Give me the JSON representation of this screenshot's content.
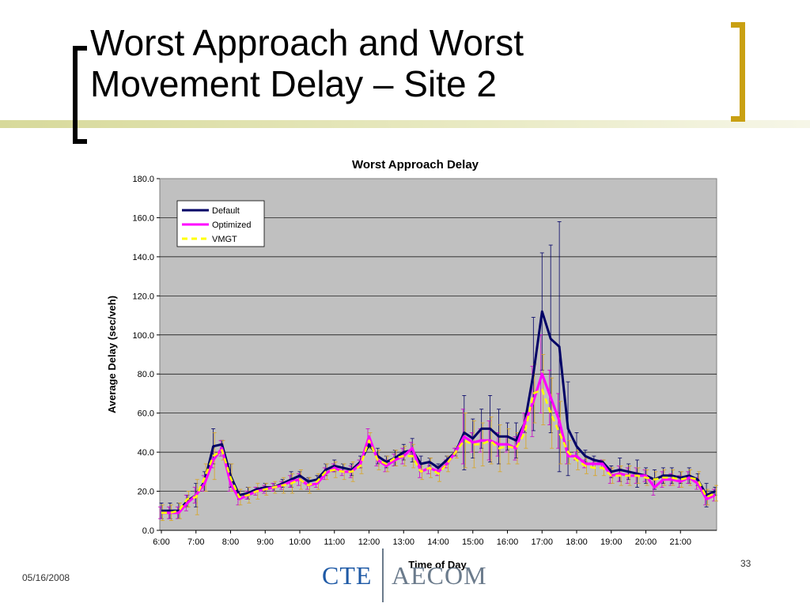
{
  "slide": {
    "title": "Worst Approach and Worst Movement Delay – Site 2",
    "date": "05/16/2008",
    "page_number": "33",
    "logo": {
      "left": "CTE",
      "right": "AECOM"
    }
  },
  "colors": {
    "bracket_left": "#000000",
    "bracket_right": "#c9a012",
    "accent_bar": "#d7d99a"
  },
  "chart_data": {
    "type": "line",
    "title": "Worst Approach Delay",
    "xlabel": "Time of Day",
    "ylabel": "Average Delay (sec/veh)",
    "ylim": [
      0,
      180
    ],
    "yticks": [
      "0.0",
      "20.0",
      "40.0",
      "60.0",
      "80.0",
      "100.0",
      "120.0",
      "140.0",
      "160.0",
      "180.0"
    ],
    "xticks": [
      "6:00",
      "7:00",
      "8:00",
      "9:00",
      "10:00",
      "11:00",
      "12:00",
      "13:00",
      "14:00",
      "15:00",
      "16:00",
      "17:00",
      "18:00",
      "19:00",
      "20:00",
      "21:00"
    ],
    "x_start": "6:00",
    "x_step_minutes": 15,
    "grid": true,
    "legend": "top-left",
    "series": [
      {
        "name": "Default",
        "color": "#000066",
        "style": "solid",
        "values": [
          10,
          10,
          10,
          15,
          18,
          25,
          43,
          44,
          28,
          18,
          19,
          21,
          22,
          22,
          24,
          26,
          28,
          25,
          26,
          31,
          33,
          32,
          31,
          35,
          44,
          38,
          35,
          37,
          40,
          41,
          34,
          35,
          32,
          36,
          40,
          50,
          47,
          52,
          52,
          48,
          48,
          46,
          55,
          80,
          112,
          98,
          94,
          52,
          43,
          38,
          36,
          35,
          30,
          31,
          30,
          29,
          28,
          26,
          28,
          28,
          27,
          28,
          26,
          18,
          20
        ],
        "err_hi": [
          14,
          14,
          14,
          18,
          24,
          30,
          52,
          46,
          34,
          20,
          22,
          22,
          24,
          24,
          26,
          30,
          30,
          27,
          28,
          34,
          36,
          34,
          34,
          38,
          46,
          42,
          38,
          41,
          44,
          47,
          38,
          37,
          34,
          38,
          42,
          69,
          57,
          62,
          69,
          62,
          55,
          55,
          60,
          109,
          142,
          146,
          158,
          76,
          50,
          41,
          38,
          36,
          33,
          37,
          34,
          36,
          32,
          31,
          32,
          32,
          30,
          32,
          29,
          24,
          22
        ]
      },
      {
        "name": "Optimized",
        "color": "#ff00ff",
        "style": "solid",
        "values": [
          9,
          9,
          9,
          14,
          18,
          24,
          36,
          42,
          24,
          16,
          18,
          20,
          21,
          22,
          23,
          25,
          26,
          23,
          24,
          29,
          32,
          30,
          30,
          34,
          48,
          36,
          33,
          36,
          38,
          42,
          30,
          32,
          30,
          34,
          40,
          48,
          45,
          46,
          46,
          44,
          44,
          42,
          55,
          66,
          80,
          68,
          56,
          38,
          38,
          34,
          34,
          34,
          28,
          29,
          28,
          28,
          28,
          22,
          26,
          26,
          25,
          27,
          24,
          16,
          18
        ],
        "err_hi": [
          12,
          12,
          12,
          18,
          22,
          28,
          40,
          46,
          28,
          19,
          20,
          22,
          23,
          24,
          25,
          28,
          29,
          25,
          26,
          32,
          34,
          32,
          33,
          36,
          52,
          39,
          36,
          39,
          42,
          45,
          33,
          35,
          32,
          36,
          42,
          62,
          50,
          52,
          56,
          50,
          48,
          48,
          60,
          84,
          100,
          82,
          70,
          42,
          40,
          36,
          36,
          36,
          32,
          33,
          32,
          32,
          31,
          26,
          30,
          29,
          28,
          30,
          27,
          19,
          21
        ]
      },
      {
        "name": "VMGT",
        "color": "#ffff00",
        "style": "dashed",
        "values": [
          9,
          9,
          10,
          16,
          17,
          27,
          38,
          41,
          27,
          17,
          18,
          20,
          21,
          22,
          23,
          24,
          26,
          23,
          25,
          30,
          31,
          30,
          30,
          33,
          46,
          36,
          34,
          37,
          38,
          38,
          30,
          32,
          29,
          34,
          40,
          46,
          44,
          44,
          46,
          42,
          43,
          42,
          50,
          70,
          72,
          60,
          50,
          40,
          36,
          33,
          32,
          32,
          28,
          28,
          28,
          28,
          27,
          26,
          27,
          27,
          26,
          27,
          26,
          17,
          19
        ],
        "err_hi": [
          13,
          13,
          14,
          20,
          26,
          34,
          50,
          46,
          34,
          21,
          22,
          24,
          24,
          25,
          27,
          29,
          31,
          27,
          29,
          34,
          35,
          34,
          35,
          37,
          50,
          41,
          38,
          41,
          43,
          44,
          34,
          37,
          33,
          38,
          43,
          60,
          56,
          55,
          58,
          54,
          52,
          50,
          58,
          85,
          90,
          78,
          66,
          46,
          41,
          37,
          36,
          36,
          32,
          33,
          33,
          32,
          31,
          30,
          31,
          31,
          30,
          31,
          30,
          21,
          23
        ]
      }
    ]
  }
}
